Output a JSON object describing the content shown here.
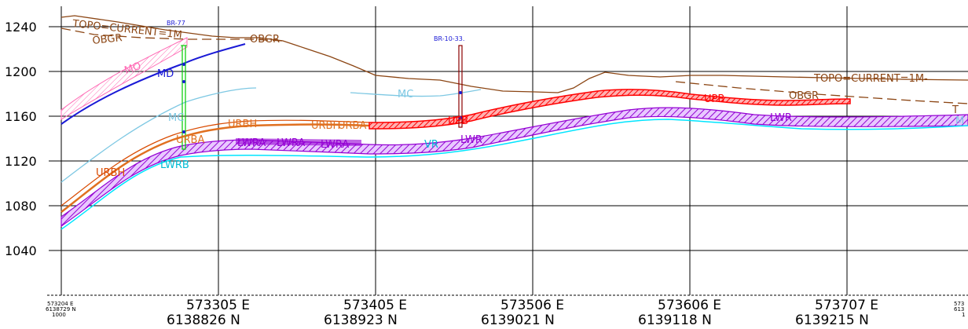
{
  "chart_data": {
    "type": "line",
    "title": "",
    "y_axis": {
      "ticks": [
        "1240",
        "1200",
        "1160",
        "1120",
        "1080",
        "1040"
      ]
    },
    "x_axis": {
      "origin_label": [
        "573204 E",
        "6138729 N",
        "1000"
      ],
      "ticks": [
        {
          "e": "573305 E",
          "n": "6138826 N"
        },
        {
          "e": "573405 E",
          "n": "6138923 N"
        },
        {
          "e": "573506 E",
          "n": "6139021 N"
        },
        {
          "e": "573606 E",
          "n": "6139118 N"
        },
        {
          "e": "573707 E",
          "n": "6139215 N"
        }
      ],
      "clipped_label": [
        "573",
        "613",
        "1"
      ]
    },
    "boreholes": [
      "BR-77",
      "BR-10-33."
    ],
    "layer_labels": {
      "topo_left": "TOPO=CURRENT=1M",
      "obgr_left": "OBGR",
      "obgr_mid": "OBGR",
      "topo_right": "TOPO=CURRENT=1M-",
      "obgr_right": "OBGR",
      "t_right": "T",
      "mo": "MO",
      "md": "MD",
      "mc": "MC",
      "mc_left": "MC",
      "m_right": "M",
      "urbh": "URBH",
      "urbh2": "URBH",
      "urbh_left": "URBH",
      "urba": "URBA",
      "urba2": "URBA",
      "lwra": "LWRA",
      "lwra2": "LWRA",
      "lwra3": "LWRA",
      "lwrb": "LWRB",
      "upb": "UPB",
      "upb2": "UPB",
      "lwr": "LWR",
      "lwr2": "LWR",
      "vr": "VR"
    },
    "colors": {
      "topo": "#8B4513",
      "bedrock_blue": "#1a1ad6",
      "light_blue": "#7ec8e3",
      "pink": "#ff69b4",
      "orange": "#e07020",
      "red": "#ff0000",
      "purple": "#9400d3",
      "cyan": "#00ffff",
      "green": "#00cc00",
      "dark_red": "#8B0000"
    }
  }
}
